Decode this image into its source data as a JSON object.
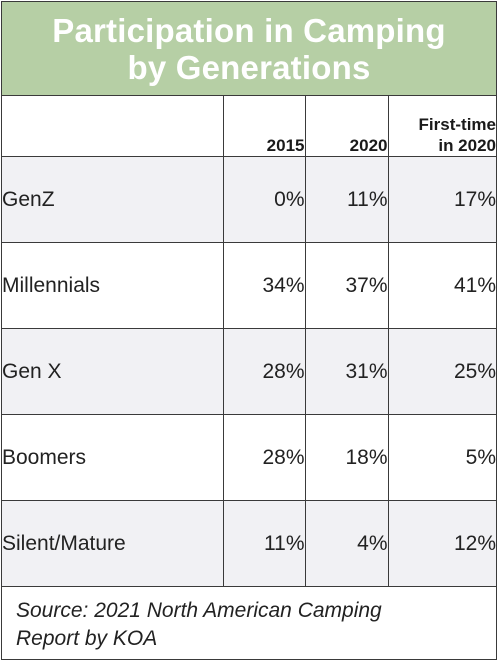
{
  "title_lines": [
    "Participation in Camping",
    "by Generations"
  ],
  "chart_data": {
    "type": "table",
    "title": "Participation in Camping by Generations",
    "columns": [
      "2015",
      "2020",
      "First-time in 2020"
    ],
    "columns_display": [
      [
        "2015"
      ],
      [
        "2020"
      ],
      [
        "First-time",
        "in 2020"
      ]
    ],
    "rows": [
      {
        "label": "GenZ",
        "cells": [
          "0%",
          "11%",
          "17%"
        ]
      },
      {
        "label": "Millennials",
        "cells": [
          "34%",
          "37%",
          "41%"
        ]
      },
      {
        "label": "Gen X",
        "cells": [
          "28%",
          "31%",
          "25%"
        ]
      },
      {
        "label": "Boomers",
        "cells": [
          "28%",
          "18%",
          "5%"
        ]
      },
      {
        "label": "Silent/Mature",
        "cells": [
          "11%",
          "4%",
          "12%"
        ]
      }
    ],
    "source_lines": [
      "Source: 2021 North American Camping",
      "Report by KOA"
    ]
  },
  "colors": {
    "title_band": "#b6cfa5",
    "title_text": "#ffffff",
    "row_shade": "#f1f1f4",
    "border": "#3a3a3a"
  }
}
